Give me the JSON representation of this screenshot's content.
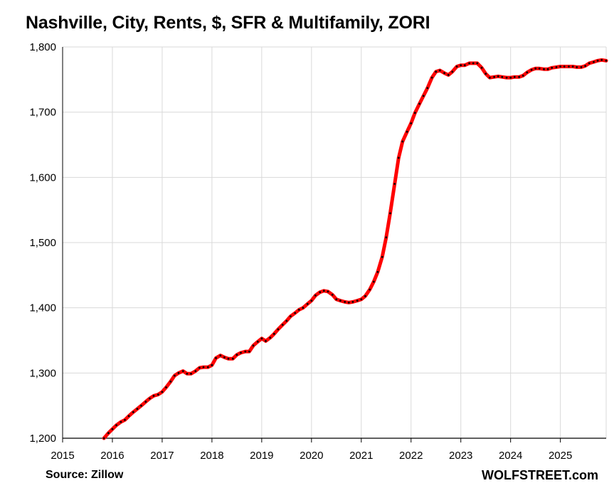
{
  "chart_data": {
    "type": "line",
    "title": "Nashville, City, Rents, $, SFR & Multifamily, ZORI",
    "xlabel": "",
    "ylabel": "",
    "xlim": [
      2015,
      2025.92
    ],
    "ylim": [
      1200,
      1800
    ],
    "x_ticks": [
      "2015",
      "2016",
      "2017",
      "2018",
      "2019",
      "2020",
      "2021",
      "2022",
      "2023",
      "2024",
      "2025"
    ],
    "y_ticks": [
      "1,200",
      "1,300",
      "1,400",
      "1,500",
      "1,600",
      "1,700",
      "1,800"
    ],
    "grid": true,
    "legend": "none",
    "series": [
      {
        "color": "#ff0000",
        "marker_color": "#000000",
        "points": [
          [
            2015.83,
            1200
          ],
          [
            2015.92,
            1208
          ],
          [
            2016.0,
            1214
          ],
          [
            2016.08,
            1220
          ],
          [
            2016.17,
            1225
          ],
          [
            2016.25,
            1228
          ],
          [
            2016.33,
            1234
          ],
          [
            2016.42,
            1240
          ],
          [
            2016.5,
            1245
          ],
          [
            2016.58,
            1250
          ],
          [
            2016.67,
            1256
          ],
          [
            2016.75,
            1261
          ],
          [
            2016.83,
            1265
          ],
          [
            2016.92,
            1267
          ],
          [
            2017.0,
            1271
          ],
          [
            2017.08,
            1278
          ],
          [
            2017.17,
            1287
          ],
          [
            2017.25,
            1296
          ],
          [
            2017.33,
            1300
          ],
          [
            2017.42,
            1303
          ],
          [
            2017.5,
            1299
          ],
          [
            2017.58,
            1299
          ],
          [
            2017.67,
            1303
          ],
          [
            2017.75,
            1308
          ],
          [
            2017.83,
            1309
          ],
          [
            2017.92,
            1309
          ],
          [
            2018.0,
            1312
          ],
          [
            2018.08,
            1323
          ],
          [
            2018.17,
            1327
          ],
          [
            2018.25,
            1324
          ],
          [
            2018.33,
            1322
          ],
          [
            2018.42,
            1322
          ],
          [
            2018.5,
            1328
          ],
          [
            2018.58,
            1331
          ],
          [
            2018.67,
            1333
          ],
          [
            2018.75,
            1333
          ],
          [
            2018.83,
            1342
          ],
          [
            2018.92,
            1348
          ],
          [
            2019.0,
            1353
          ],
          [
            2019.08,
            1349
          ],
          [
            2019.17,
            1354
          ],
          [
            2019.25,
            1360
          ],
          [
            2019.33,
            1367
          ],
          [
            2019.42,
            1374
          ],
          [
            2019.5,
            1380
          ],
          [
            2019.58,
            1387
          ],
          [
            2019.67,
            1392
          ],
          [
            2019.75,
            1397
          ],
          [
            2019.83,
            1400
          ],
          [
            2019.92,
            1406
          ],
          [
            2020.0,
            1411
          ],
          [
            2020.08,
            1419
          ],
          [
            2020.17,
            1424
          ],
          [
            2020.25,
            1426
          ],
          [
            2020.33,
            1425
          ],
          [
            2020.42,
            1420
          ],
          [
            2020.5,
            1413
          ],
          [
            2020.58,
            1411
          ],
          [
            2020.67,
            1409
          ],
          [
            2020.75,
            1408
          ],
          [
            2020.83,
            1409
          ],
          [
            2020.92,
            1411
          ],
          [
            2021.0,
            1413
          ],
          [
            2021.08,
            1418
          ],
          [
            2021.17,
            1428
          ],
          [
            2021.25,
            1440
          ],
          [
            2021.33,
            1455
          ],
          [
            2021.42,
            1478
          ],
          [
            2021.5,
            1508
          ],
          [
            2021.58,
            1545
          ],
          [
            2021.67,
            1590
          ],
          [
            2021.75,
            1630
          ],
          [
            2021.83,
            1655
          ],
          [
            2021.92,
            1670
          ],
          [
            2022.0,
            1683
          ],
          [
            2022.08,
            1699
          ],
          [
            2022.17,
            1713
          ],
          [
            2022.25,
            1725
          ],
          [
            2022.33,
            1737
          ],
          [
            2022.42,
            1753
          ],
          [
            2022.5,
            1762
          ],
          [
            2022.58,
            1764
          ],
          [
            2022.67,
            1760
          ],
          [
            2022.75,
            1757
          ],
          [
            2022.83,
            1762
          ],
          [
            2022.92,
            1770
          ],
          [
            2023.0,
            1772
          ],
          [
            2023.08,
            1772
          ],
          [
            2023.17,
            1775
          ],
          [
            2023.25,
            1775
          ],
          [
            2023.33,
            1775
          ],
          [
            2023.42,
            1768
          ],
          [
            2023.5,
            1759
          ],
          [
            2023.58,
            1753
          ],
          [
            2023.67,
            1754
          ],
          [
            2023.75,
            1755
          ],
          [
            2023.83,
            1754
          ],
          [
            2023.92,
            1753
          ],
          [
            2024.0,
            1753
          ],
          [
            2024.08,
            1754
          ],
          [
            2024.17,
            1754
          ],
          [
            2024.25,
            1756
          ],
          [
            2024.33,
            1761
          ],
          [
            2024.42,
            1765
          ],
          [
            2024.5,
            1767
          ],
          [
            2024.58,
            1767
          ],
          [
            2024.67,
            1766
          ],
          [
            2024.75,
            1766
          ],
          [
            2024.83,
            1768
          ],
          [
            2024.92,
            1769
          ],
          [
            2025.0,
            1770
          ],
          [
            2025.08,
            1770
          ],
          [
            2025.17,
            1770
          ],
          [
            2025.25,
            1770
          ],
          [
            2025.33,
            1769
          ],
          [
            2025.42,
            1769
          ],
          [
            2025.5,
            1771
          ],
          [
            2025.58,
            1775
          ],
          [
            2025.67,
            1777
          ],
          [
            2025.75,
            1779
          ],
          [
            2025.83,
            1780
          ],
          [
            2025.92,
            1779
          ]
        ]
      }
    ]
  },
  "footer": {
    "source": "Source: Zillow",
    "brand": "WOLFSTREET.com"
  }
}
